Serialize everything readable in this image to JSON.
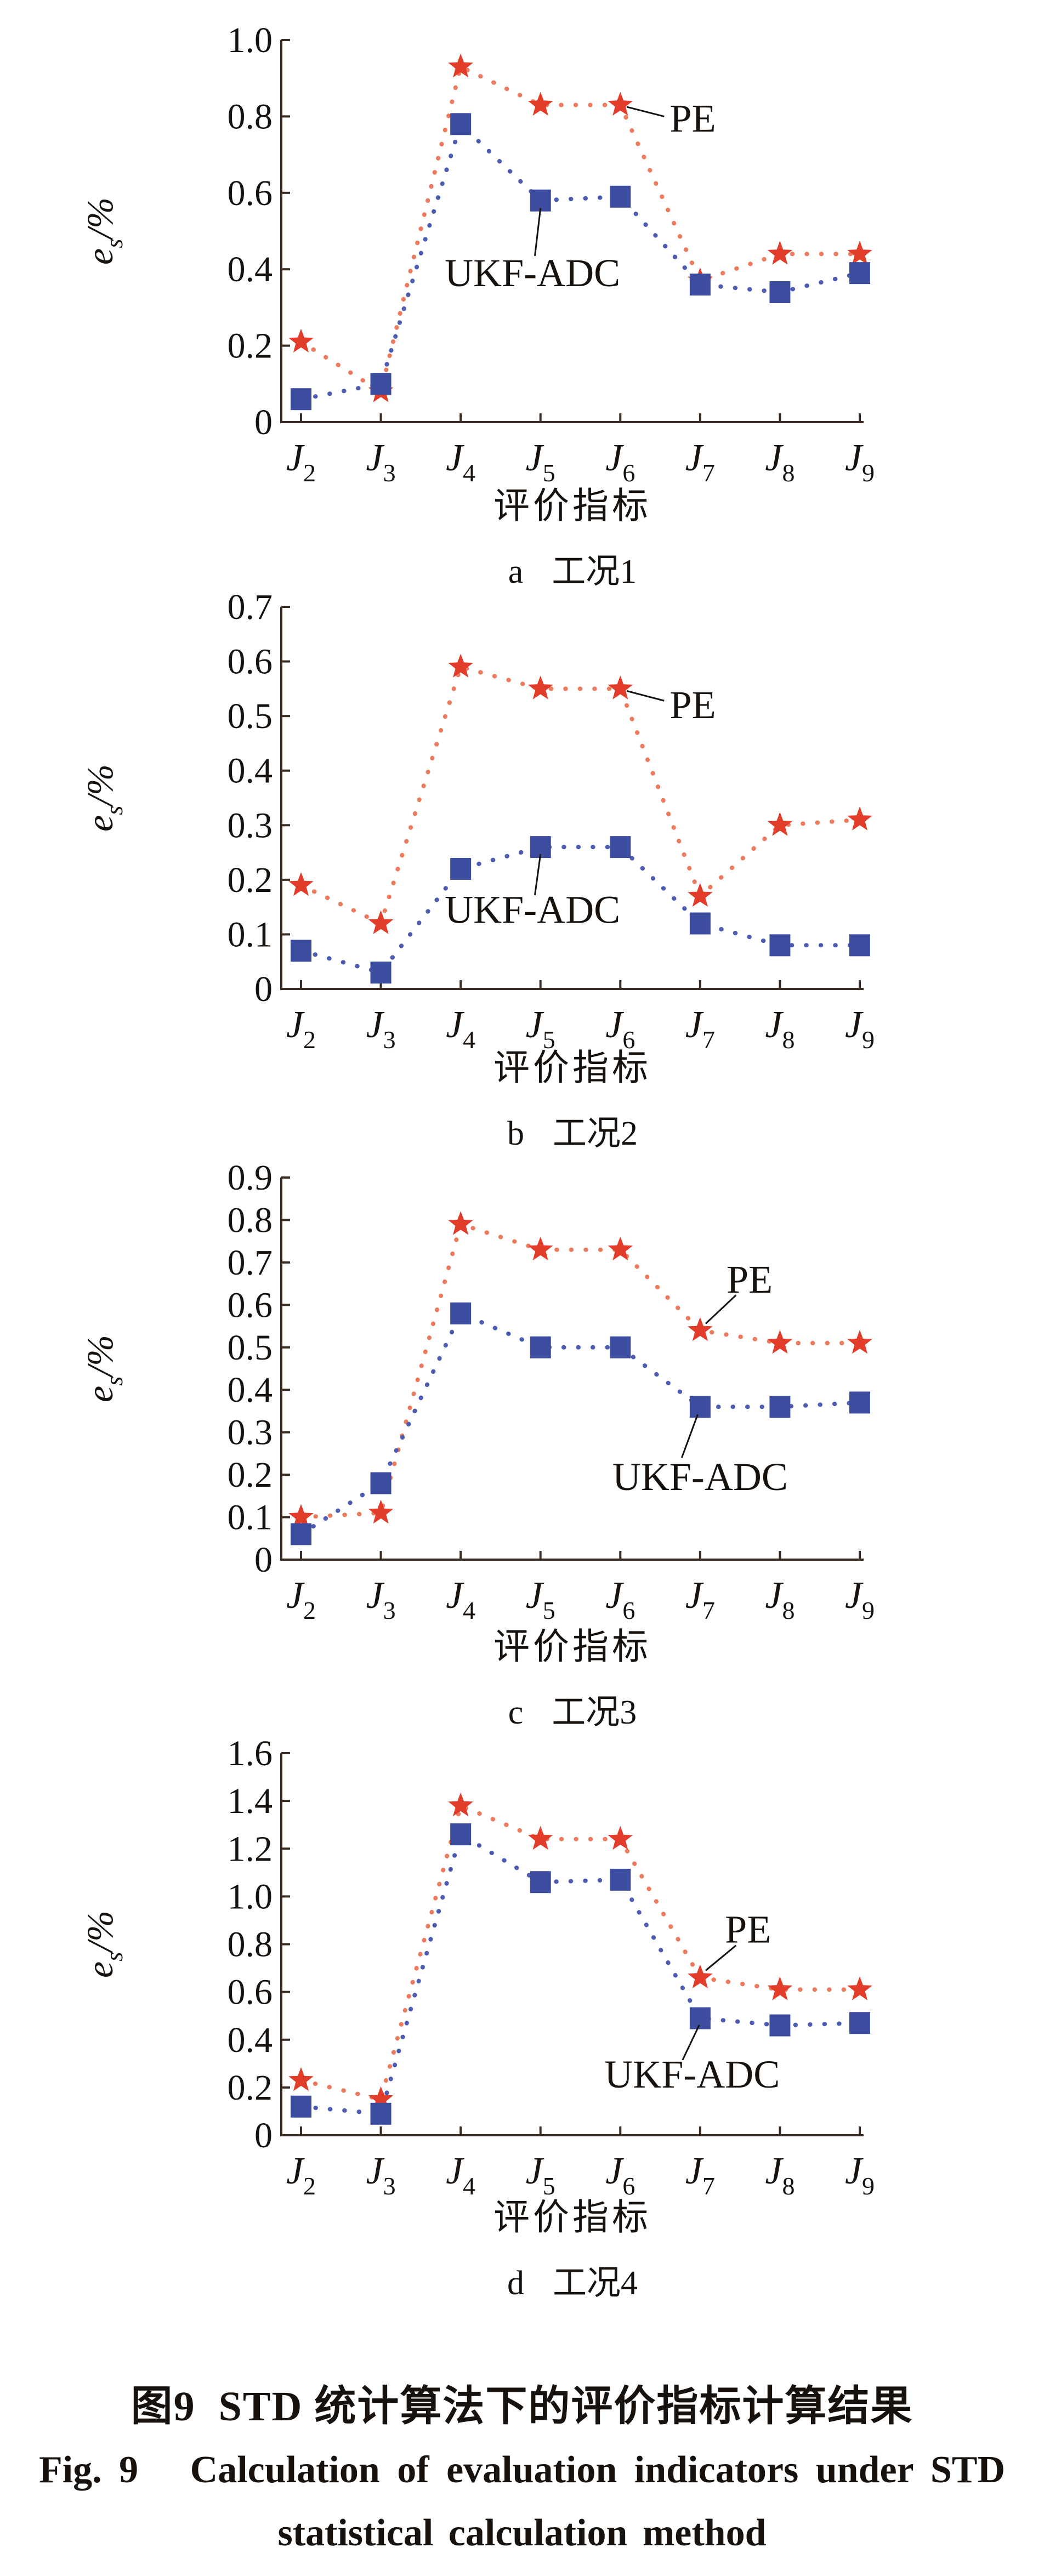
{
  "figure": {
    "caption_zh": "图9  STD 统计算法下的评价指标计算结果",
    "caption_en_line1": "Fig. 9   Calculation of evaluation indicators under STD",
    "caption_en_line2": "statistical calculation method"
  },
  "colors": {
    "axis": "#3a2c22",
    "text": "#17120e",
    "pe_marker": "#e23c2a",
    "pe_line": "#ee7a5e",
    "ukf_marker": "#3c4da0",
    "ukf_line": "#4c5cb2",
    "leader": "#17120e"
  },
  "chart_data": [
    {
      "type": "line",
      "caption_letter": "a",
      "caption_title": "工况1",
      "xlabel": "评价指标",
      "ylabel": {
        "var": "e",
        "sub": "s",
        "unit": "/%"
      },
      "x_tick_base": "J",
      "x_tick_subs": [
        "2",
        "3",
        "4",
        "5",
        "6",
        "7",
        "8",
        "9"
      ],
      "ylim": [
        0,
        1.0
      ],
      "yticks": [
        "0",
        "0.2",
        "0.4",
        "0.6",
        "0.8",
        "1.0"
      ],
      "grid": false,
      "series": [
        {
          "name": "PE",
          "marker": "star",
          "values": [
            0.21,
            0.08,
            0.93,
            0.83,
            0.83,
            0.37,
            0.44,
            0.44
          ]
        },
        {
          "name": "UKF-ADC",
          "marker": "square",
          "values": [
            0.06,
            0.1,
            0.78,
            0.58,
            0.59,
            0.36,
            0.34,
            0.39
          ]
        }
      ],
      "annotations": [
        {
          "label": "PE",
          "anchor": "start",
          "tx": 6.62,
          "ty": 0.795,
          "lx1": 6.08,
          "ly1": 0.825,
          "lx2": 6.55,
          "ly2": 0.8
        },
        {
          "label": "UKF-ADC",
          "anchor": "middle",
          "tx": 4.9,
          "ty": 0.39,
          "lx1": 5.0,
          "ly1": 0.56,
          "lx2": 4.93,
          "ly2": 0.435
        }
      ]
    },
    {
      "type": "line",
      "caption_letter": "b",
      "caption_title": "工况2",
      "xlabel": "评价指标",
      "ylabel": {
        "var": "e",
        "sub": "s",
        "unit": "/%"
      },
      "x_tick_base": "J",
      "x_tick_subs": [
        "2",
        "3",
        "4",
        "5",
        "6",
        "7",
        "8",
        "9"
      ],
      "ylim": [
        0,
        0.7
      ],
      "yticks": [
        "0",
        "0.1",
        "0.2",
        "0.3",
        "0.4",
        "0.5",
        "0.6",
        "0.7"
      ],
      "grid": false,
      "series": [
        {
          "name": "PE",
          "marker": "star",
          "values": [
            0.19,
            0.12,
            0.59,
            0.55,
            0.55,
            0.17,
            0.3,
            0.31
          ]
        },
        {
          "name": "UKF-ADC",
          "marker": "square",
          "values": [
            0.07,
            0.03,
            0.22,
            0.26,
            0.26,
            0.12,
            0.08,
            0.08
          ]
        }
      ],
      "annotations": [
        {
          "label": "PE",
          "anchor": "start",
          "tx": 6.62,
          "ty": 0.52,
          "lx1": 6.08,
          "ly1": 0.546,
          "lx2": 6.55,
          "ly2": 0.528
        },
        {
          "label": "UKF-ADC",
          "anchor": "middle",
          "tx": 4.9,
          "ty": 0.145,
          "lx1": 5.0,
          "ly1": 0.247,
          "lx2": 4.93,
          "ly2": 0.172
        }
      ]
    },
    {
      "type": "line",
      "caption_letter": "c",
      "caption_title": "工况3",
      "xlabel": "评价指标",
      "ylabel": {
        "var": "e",
        "sub": "s",
        "unit": "/%"
      },
      "x_tick_base": "J",
      "x_tick_subs": [
        "2",
        "3",
        "4",
        "5",
        "6",
        "7",
        "8",
        "9"
      ],
      "ylim": [
        0,
        0.9
      ],
      "yticks": [
        "0",
        "0.1",
        "0.2",
        "0.3",
        "0.4",
        "0.5",
        "0.6",
        "0.7",
        "0.8",
        "0.9"
      ],
      "grid": false,
      "series": [
        {
          "name": "PE",
          "marker": "star",
          "values": [
            0.1,
            0.11,
            0.79,
            0.73,
            0.73,
            0.54,
            0.51,
            0.51
          ]
        },
        {
          "name": "UKF-ADC",
          "marker": "square",
          "values": [
            0.06,
            0.18,
            0.58,
            0.5,
            0.5,
            0.36,
            0.36,
            0.37
          ]
        }
      ],
      "annotations": [
        {
          "label": "PE",
          "anchor": "middle",
          "tx": 7.62,
          "ty": 0.66,
          "lx1": 7.45,
          "ly1": 0.623,
          "lx2": 7.07,
          "ly2": 0.556
        },
        {
          "label": "UKF-ADC",
          "anchor": "middle",
          "tx": 7.0,
          "ty": 0.195,
          "lx1": 6.97,
          "ly1": 0.342,
          "lx2": 6.77,
          "ly2": 0.24
        }
      ]
    },
    {
      "type": "line",
      "caption_letter": "d",
      "caption_title": "工况4",
      "xlabel": "评价指标",
      "ylabel": {
        "var": "e",
        "sub": "s",
        "unit": "/%"
      },
      "x_tick_base": "J",
      "x_tick_subs": [
        "2",
        "3",
        "4",
        "5",
        "6",
        "7",
        "8",
        "9"
      ],
      "ylim": [
        0,
        1.6
      ],
      "yticks": [
        "0",
        "0.2",
        "0.4",
        "0.6",
        "0.8",
        "1.0",
        "1.2",
        "1.4",
        "1.6"
      ],
      "grid": false,
      "series": [
        {
          "name": "PE",
          "marker": "star",
          "values": [
            0.23,
            0.15,
            1.38,
            1.24,
            1.24,
            0.66,
            0.61,
            0.61
          ]
        },
        {
          "name": "UKF-ADC",
          "marker": "square",
          "values": [
            0.12,
            0.09,
            1.26,
            1.06,
            1.07,
            0.49,
            0.46,
            0.47
          ]
        }
      ],
      "annotations": [
        {
          "label": "PE",
          "anchor": "middle",
          "tx": 7.6,
          "ty": 0.862,
          "lx1": 7.45,
          "ly1": 0.795,
          "lx2": 7.07,
          "ly2": 0.69
        },
        {
          "label": "UKF-ADC",
          "anchor": "middle",
          "tx": 6.9,
          "ty": 0.255,
          "lx1": 6.99,
          "ly1": 0.462,
          "lx2": 6.78,
          "ly2": 0.315
        }
      ]
    }
  ]
}
